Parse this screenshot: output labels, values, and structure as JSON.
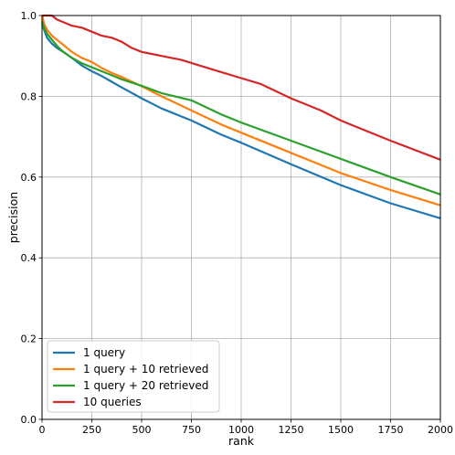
{
  "chart_data": {
    "type": "line",
    "title": "",
    "xlabel": "rank",
    "ylabel": "precision",
    "xlim": [
      0,
      2000
    ],
    "ylim": [
      0.0,
      1.0
    ],
    "xticks": [
      0,
      250,
      500,
      750,
      1000,
      1250,
      1500,
      1750,
      2000
    ],
    "yticks": [
      0.0,
      0.2,
      0.4,
      0.6,
      0.8,
      1.0
    ],
    "xtick_labels": [
      "0",
      "250",
      "500",
      "750",
      "1000",
      "1250",
      "1500",
      "1750",
      "2000"
    ],
    "ytick_labels": [
      "0.0",
      "0.2",
      "0.4",
      "0.6",
      "0.8",
      "1.0"
    ],
    "grid": true,
    "legend_position": "bottom-left",
    "series": [
      {
        "name": "1 query",
        "color": "#1f77b4",
        "x": [
          1,
          10,
          25,
          50,
          75,
          100,
          150,
          200,
          250,
          300,
          350,
          400,
          500,
          600,
          750,
          900,
          1000,
          1250,
          1500,
          1750,
          2000
        ],
        "y": [
          0.98,
          0.965,
          0.945,
          0.93,
          0.92,
          0.912,
          0.895,
          0.876,
          0.862,
          0.85,
          0.836,
          0.822,
          0.795,
          0.77,
          0.74,
          0.705,
          0.685,
          0.632,
          0.58,
          0.535,
          0.498
        ]
      },
      {
        "name": "1 query + 10 retrieved",
        "color": "#ff7f0e",
        "x": [
          1,
          10,
          25,
          50,
          75,
          100,
          150,
          200,
          250,
          300,
          350,
          400,
          500,
          600,
          750,
          900,
          1000,
          1250,
          1500,
          1750,
          2000
        ],
        "y": [
          1.0,
          0.98,
          0.965,
          0.95,
          0.94,
          0.93,
          0.91,
          0.895,
          0.885,
          0.87,
          0.858,
          0.848,
          0.825,
          0.8,
          0.765,
          0.73,
          0.71,
          0.66,
          0.61,
          0.568,
          0.53
        ]
      },
      {
        "name": "1 query + 20 retrieved",
        "color": "#2ca02c",
        "x": [
          1,
          10,
          25,
          50,
          75,
          100,
          150,
          200,
          250,
          300,
          350,
          400,
          500,
          600,
          750,
          900,
          1000,
          1250,
          1500,
          1750,
          2000
        ],
        "y": [
          0.985,
          0.97,
          0.955,
          0.94,
          0.925,
          0.913,
          0.895,
          0.882,
          0.872,
          0.862,
          0.852,
          0.842,
          0.826,
          0.808,
          0.79,
          0.755,
          0.735,
          0.69,
          0.645,
          0.6,
          0.557
        ]
      },
      {
        "name": "10 queries",
        "color": "#d62728",
        "x": [
          1,
          25,
          50,
          75,
          100,
          150,
          200,
          250,
          300,
          350,
          400,
          450,
          500,
          550,
          600,
          700,
          800,
          900,
          1000,
          1100,
          1250,
          1400,
          1500,
          1750,
          2000
        ],
        "y": [
          1.0,
          1.0,
          1.0,
          0.99,
          0.985,
          0.975,
          0.97,
          0.96,
          0.95,
          0.945,
          0.935,
          0.92,
          0.91,
          0.905,
          0.9,
          0.89,
          0.875,
          0.86,
          0.845,
          0.83,
          0.795,
          0.765,
          0.74,
          0.69,
          0.643
        ]
      }
    ]
  }
}
